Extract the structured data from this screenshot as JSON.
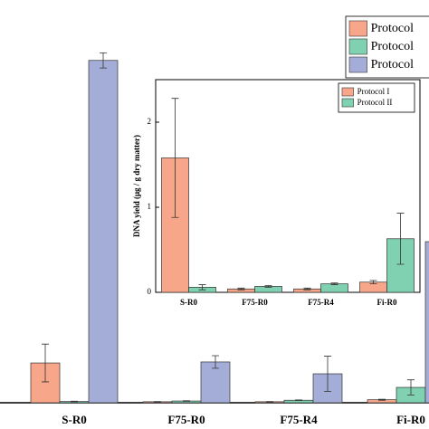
{
  "chart_data": [
    {
      "type": "bar",
      "categories": [
        "S-R0",
        "F75-R0",
        "F75-R4",
        "Fi-R0"
      ],
      "ylim": [
        0,
        16
      ],
      "series": [
        {
          "name": "Protocol",
          "color": "#f7a68a",
          "values": [
            1.58,
            0.04,
            0.04,
            0.12
          ],
          "errors": [
            0.75,
            0.01,
            0.01,
            0.02
          ]
        },
        {
          "name": "Protocol",
          "color": "#7fd1b1",
          "values": [
            0.05,
            0.07,
            0.1,
            0.61
          ],
          "errors": [
            0.01,
            0.01,
            0.01,
            0.3
          ]
        },
        {
          "name": "Protocol",
          "color": "#a4acd8",
          "values": [
            13.6,
            1.62,
            1.15,
            6.4
          ],
          "errors": [
            0.3,
            0.25,
            0.7,
            0.4
          ]
        }
      ]
    },
    {
      "type": "bar",
      "y_label": "DNA yield (μg / g dry matter)",
      "categories": [
        "S-R0",
        "F75-R0",
        "F75-R4",
        "Fi-R0"
      ],
      "ylim": [
        0,
        2.5
      ],
      "yticks": [
        0,
        1,
        2
      ],
      "series": [
        {
          "name": "Protocol I",
          "color": "#f7a68a",
          "values": [
            1.58,
            0.04,
            0.04,
            0.12
          ],
          "errors": [
            0.7,
            0.01,
            0.01,
            0.02
          ]
        },
        {
          "name": "Protocol II",
          "color": "#7fd1b1",
          "values": [
            0.06,
            0.07,
            0.1,
            0.63
          ],
          "errors": [
            0.03,
            0.01,
            0.01,
            0.3
          ]
        }
      ]
    }
  ]
}
